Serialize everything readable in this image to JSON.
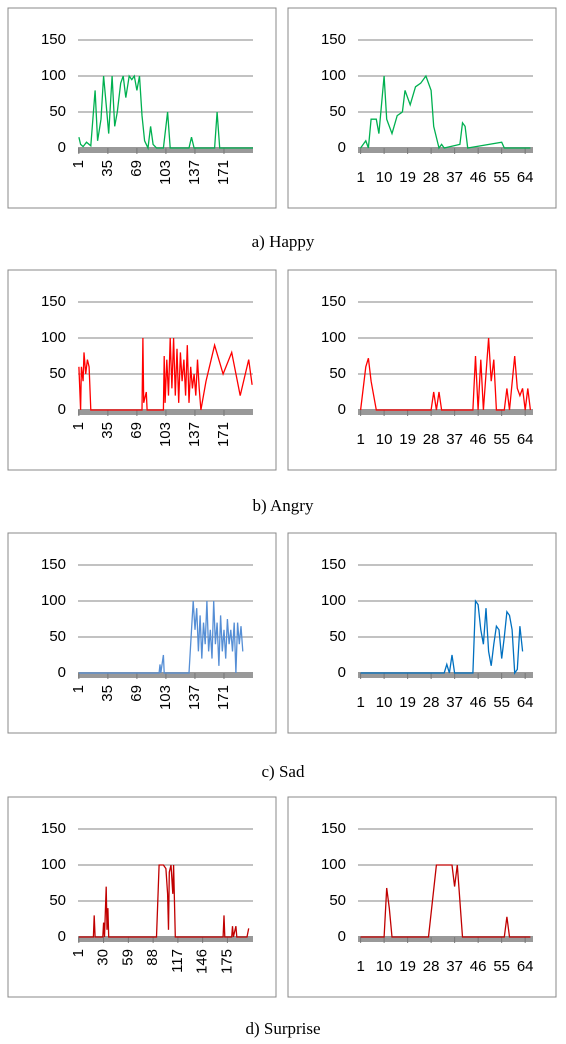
{
  "chart_data": [
    {
      "type": "line",
      "color": "#00b050",
      "xlim": [
        0,
        205
      ],
      "xticks": [
        1,
        35,
        69,
        103,
        137,
        171
      ],
      "ylim": [
        0,
        150
      ],
      "yticks": [
        0,
        50,
        100,
        150
      ],
      "grid": true,
      "x": [
        1,
        3,
        6,
        10,
        15,
        20,
        23,
        27,
        30,
        33,
        36,
        40,
        43,
        46,
        50,
        53,
        56,
        60,
        63,
        66,
        69,
        72,
        75,
        78,
        82,
        85,
        88,
        92,
        100,
        105,
        108,
        130,
        133,
        136,
        160,
        163,
        166,
        205
      ],
      "values": [
        15,
        5,
        2,
        8,
        3,
        80,
        10,
        40,
        100,
        60,
        20,
        100,
        30,
        50,
        90,
        100,
        70,
        100,
        95,
        100,
        80,
        100,
        45,
        10,
        0,
        30,
        5,
        0,
        0,
        50,
        0,
        0,
        15,
        0,
        0,
        50,
        0,
        0
      ]
    },
    {
      "type": "line",
      "color": "#00b050",
      "xlim": [
        0,
        67
      ],
      "xticks": [
        1,
        10,
        19,
        28,
        37,
        46,
        55,
        64
      ],
      "ylim": [
        0,
        150
      ],
      "yticks": [
        0,
        50,
        100,
        150
      ],
      "grid": true,
      "x": [
        1,
        3,
        4,
        5,
        7,
        8,
        10,
        11,
        13,
        15,
        17,
        18,
        20,
        22,
        24,
        26,
        28,
        29,
        31,
        32,
        33,
        39,
        40,
        41,
        42,
        55,
        56,
        66
      ],
      "values": [
        0,
        10,
        0,
        40,
        40,
        20,
        100,
        40,
        20,
        45,
        50,
        80,
        60,
        85,
        90,
        100,
        80,
        30,
        0,
        5,
        0,
        5,
        35,
        30,
        0,
        8,
        0,
        0
      ]
    },
    {
      "type": "line",
      "color": "#ff0000",
      "xlim": [
        0,
        205
      ],
      "xticks": [
        1,
        35,
        69,
        103,
        137,
        171
      ],
      "ylim": [
        0,
        150
      ],
      "yticks": [
        0,
        50,
        100,
        150
      ],
      "grid": true,
      "x": [
        1,
        3,
        4,
        6,
        7,
        9,
        11,
        13,
        15,
        75,
        76,
        77,
        80,
        81,
        100,
        101,
        102,
        104,
        106,
        108,
        110,
        112,
        114,
        116,
        118,
        120,
        122,
        124,
        126,
        128,
        130,
        132,
        134,
        136,
        138,
        140,
        142,
        144,
        150,
        160,
        170,
        180,
        190,
        200,
        204
      ],
      "values": [
        60,
        0,
        60,
        40,
        80,
        50,
        70,
        60,
        0,
        0,
        100,
        10,
        25,
        0,
        0,
        75,
        10,
        70,
        20,
        100,
        30,
        100,
        20,
        85,
        10,
        80,
        40,
        70,
        20,
        90,
        10,
        60,
        30,
        50,
        20,
        70,
        30,
        0,
        40,
        90,
        50,
        80,
        20,
        70,
        35
      ]
    },
    {
      "type": "line",
      "color": "#ff0000",
      "xlim": [
        0,
        67
      ],
      "xticks": [
        1,
        10,
        19,
        28,
        37,
        46,
        55,
        64
      ],
      "ylim": [
        0,
        150
      ],
      "yticks": [
        0,
        50,
        100,
        150
      ],
      "grid": true,
      "x": [
        1,
        3,
        4,
        5,
        7,
        28,
        29,
        30,
        31,
        32,
        44,
        45,
        46,
        47,
        48,
        50,
        51,
        52,
        53,
        56,
        57,
        58,
        60,
        61,
        62,
        63,
        64,
        65,
        66
      ],
      "values": [
        0,
        60,
        72,
        40,
        0,
        0,
        25,
        0,
        25,
        0,
        0,
        75,
        0,
        70,
        0,
        100,
        40,
        70,
        0,
        0,
        30,
        0,
        75,
        30,
        20,
        30,
        0,
        30,
        0
      ]
    },
    {
      "type": "line",
      "color": "#558ed5",
      "xlim": [
        0,
        205
      ],
      "xticks": [
        1,
        35,
        69,
        103,
        137,
        171
      ],
      "ylim": [
        0,
        150
      ],
      "yticks": [
        0,
        50,
        100,
        150
      ],
      "grid": true,
      "x": [
        1,
        95,
        96,
        97,
        100,
        101,
        130,
        135,
        137,
        139,
        141,
        143,
        145,
        147,
        149,
        151,
        153,
        155,
        157,
        159,
        161,
        163,
        165,
        167,
        169,
        171,
        173,
        175,
        177,
        179,
        181,
        183,
        185,
        187,
        189,
        191,
        193
      ],
      "values": [
        0,
        0,
        12,
        0,
        25,
        0,
        0,
        100,
        60,
        90,
        30,
        80,
        20,
        70,
        40,
        100,
        30,
        60,
        20,
        100,
        40,
        70,
        10,
        80,
        30,
        60,
        20,
        75,
        40,
        60,
        30,
        70,
        0,
        70,
        40,
        65,
        30
      ]
    },
    {
      "type": "line",
      "color": "#0070c0",
      "xlim": [
        0,
        67
      ],
      "xticks": [
        1,
        10,
        19,
        28,
        37,
        46,
        55,
        64
      ],
      "ylim": [
        0,
        150
      ],
      "yticks": [
        0,
        50,
        100,
        150
      ],
      "grid": true,
      "x": [
        1,
        33,
        34,
        35,
        36,
        37,
        44,
        45,
        46,
        47,
        48,
        49,
        50,
        51,
        52,
        53,
        54,
        55,
        56,
        57,
        58,
        59,
        60,
        61,
        62,
        63
      ],
      "values": [
        0,
        0,
        12,
        0,
        25,
        0,
        0,
        100,
        95,
        60,
        40,
        90,
        30,
        10,
        40,
        65,
        60,
        20,
        50,
        85,
        80,
        60,
        0,
        5,
        65,
        30
      ]
    },
    {
      "type": "line",
      "color": "#c00000",
      "xlim": [
        0,
        205
      ],
      "xticks": [
        1,
        30,
        59,
        88,
        117,
        146,
        175
      ],
      "ylim": [
        0,
        150
      ],
      "yticks": [
        0,
        50,
        100,
        150
      ],
      "grid": true,
      "x": [
        1,
        18,
        19,
        20,
        29,
        30,
        31,
        33,
        34,
        35,
        36,
        92,
        95,
        100,
        103,
        105,
        106,
        107,
        109,
        111,
        112,
        114,
        170,
        171,
        172,
        180,
        181,
        182,
        185,
        186,
        198,
        200
      ],
      "values": [
        0,
        0,
        30,
        0,
        0,
        20,
        0,
        70,
        10,
        40,
        0,
        0,
        100,
        100,
        95,
        60,
        10,
        90,
        100,
        60,
        100,
        0,
        0,
        30,
        0,
        0,
        15,
        0,
        15,
        0,
        0,
        12
      ]
    },
    {
      "type": "line",
      "color": "#c00000",
      "xlim": [
        0,
        67
      ],
      "xticks": [
        1,
        10,
        19,
        28,
        37,
        46,
        55,
        64
      ],
      "ylim": [
        0,
        150
      ],
      "yticks": [
        0,
        50,
        100,
        150
      ],
      "grid": true,
      "x": [
        1,
        10,
        11,
        12,
        13,
        27,
        30,
        36,
        37,
        38,
        40,
        56,
        57,
        58,
        66
      ],
      "values": [
        0,
        0,
        68,
        40,
        0,
        0,
        100,
        100,
        70,
        100,
        0,
        0,
        28,
        0,
        0
      ]
    }
  ],
  "captions": [
    "a) Happy",
    "b) Angry",
    "c) Sad",
    "d) Surprise"
  ]
}
